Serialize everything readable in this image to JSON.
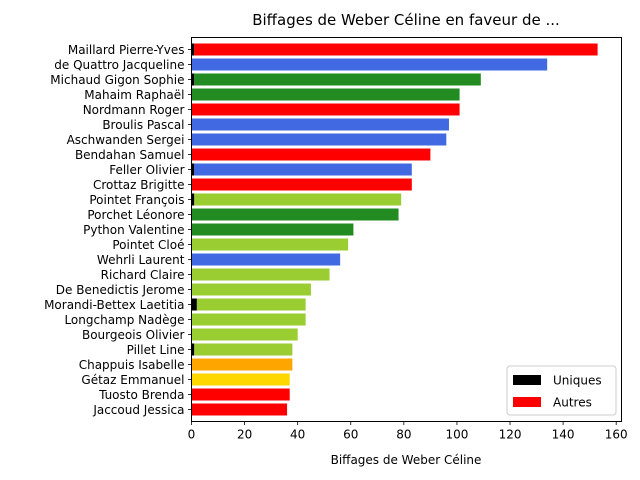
{
  "chart_data": {
    "type": "bar",
    "orientation": "horizontal",
    "stacked": true,
    "title": "Biffages de Weber Céline en faveur de ...",
    "xlabel": "Biffages de Weber Céline",
    "ylabel": "",
    "xlim": [
      0,
      162
    ],
    "xticks": [
      0,
      20,
      40,
      60,
      80,
      100,
      120,
      140,
      160
    ],
    "grid": false,
    "legend": {
      "placement": "bottom-right",
      "entries": [
        {
          "label": "Uniques",
          "color": "#000000"
        },
        {
          "label": "Autres",
          "color": "#ff0000"
        }
      ]
    },
    "categories": [
      "Maillard Pierre-Yves",
      "de Quattro Jacqueline",
      "Michaud Gigon Sophie",
      "Mahaim Raphaël",
      "Nordmann Roger",
      "Broulis Pascal",
      "Aschwanden Sergei",
      "Bendahan Samuel",
      "Feller Olivier",
      "Crottaz Brigitte",
      "Pointet François",
      "Porchet Léonore",
      "Python Valentine",
      "Pointet Cloé",
      "Wehrli Laurent",
      "Richard Claire",
      "De Benedictis Jerome",
      "Morandi-Bettex Laetitia",
      "Longchamp Nadège",
      "Bourgeois Olivier",
      "Pillet Line",
      "Chappuis Isabelle",
      "Gétaz Emmanuel",
      "Tuosto Brenda",
      "Jaccoud Jessica"
    ],
    "series": [
      {
        "name": "Uniques",
        "color": "#000000",
        "values": [
          1,
          0,
          1,
          0,
          0,
          0,
          0,
          0,
          1,
          0,
          1,
          0,
          0,
          0,
          0,
          0,
          0,
          2,
          0,
          0,
          1,
          0,
          0,
          0,
          0
        ]
      },
      {
        "name": "Autres",
        "values": [
          152,
          134,
          108,
          101,
          101,
          97,
          96,
          90,
          82,
          83,
          78,
          78,
          61,
          59,
          56,
          52,
          45,
          41,
          43,
          40,
          37,
          38,
          37,
          37,
          36
        ],
        "colors": [
          "#ff0000",
          "#4169e1",
          "#228b22",
          "#228b22",
          "#ff0000",
          "#4169e1",
          "#4169e1",
          "#ff0000",
          "#4169e1",
          "#ff0000",
          "#9acd32",
          "#228b22",
          "#228b22",
          "#9acd32",
          "#4169e1",
          "#9acd32",
          "#9acd32",
          "#9acd32",
          "#9acd32",
          "#9acd32",
          "#9acd32",
          "#ffa500",
          "#ffd700",
          "#ff0000",
          "#ff0000"
        ]
      }
    ]
  }
}
